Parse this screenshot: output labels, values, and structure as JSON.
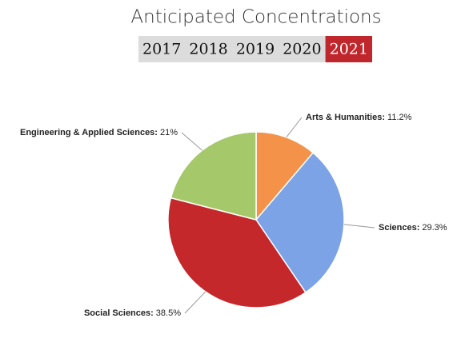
{
  "chart_data": {
    "type": "pie",
    "title": "Anticipated Concentrations",
    "tabs": [
      "2017",
      "2018",
      "2019",
      "2020",
      "2021"
    ],
    "active_tab": "2021",
    "categories": [
      "Arts & Humanities:",
      "Sciences:",
      "Social Sciences:",
      "Engineering & Applied Sciences:"
    ],
    "values": [
      11.2,
      29.3,
      38.5,
      21
    ],
    "value_labels": [
      "11.2%",
      "29.3%",
      "38.5%",
      "21%"
    ],
    "colors": [
      "#f4924a",
      "#7ba3e6",
      "#c4282b",
      "#a5c96a"
    ]
  }
}
